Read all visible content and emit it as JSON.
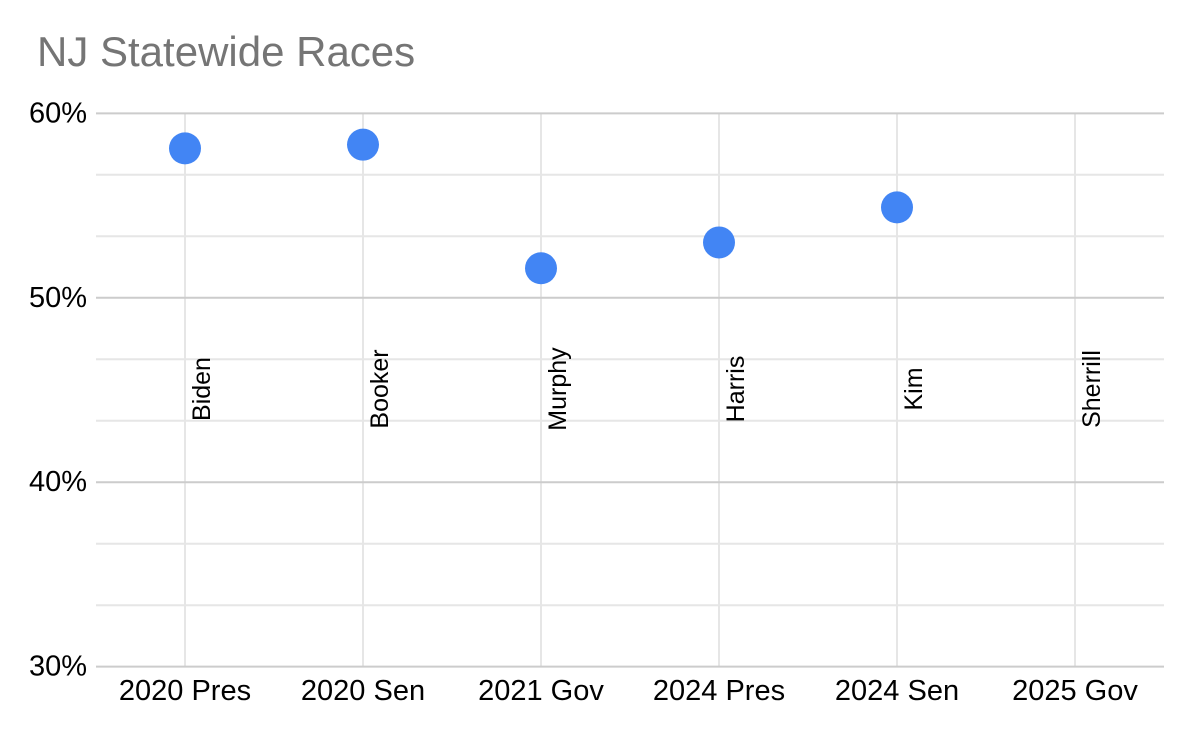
{
  "chart_data": {
    "type": "scatter",
    "title": "NJ Statewide Races",
    "title_color": "#757575",
    "point_color": "#4285f4",
    "text_color": "#000000",
    "grid_major_color": "#cccccc",
    "grid_minor_color": "#e6e6e6",
    "background_color": "#ffffff",
    "legend": "none",
    "grid": true,
    "categories": [
      "2020 Pres",
      "2020 Sen",
      "2021 Gov",
      "2024 Pres",
      "2024 Sen",
      "2025 Gov"
    ],
    "points": [
      {
        "category": "2020 Pres",
        "label": "Biden",
        "value": 58.1
      },
      {
        "category": "2020 Sen",
        "label": "Booker",
        "value": 58.3
      },
      {
        "category": "2021 Gov",
        "label": "Murphy",
        "value": 51.6
      },
      {
        "category": "2024 Pres",
        "label": "Harris",
        "value": 53.0
      },
      {
        "category": "2024 Sen",
        "label": "Kim",
        "value": 54.9
      },
      {
        "category": "2025 Gov",
        "label": "Sherrill",
        "value": null
      }
    ],
    "y_axis": {
      "min": 30,
      "max": 60,
      "minor_divisions": 3,
      "ticks": [
        {
          "value": 60,
          "label": "60%"
        },
        {
          "value": 50,
          "label": "50%"
        },
        {
          "value": 40,
          "label": "40%"
        },
        {
          "value": 30,
          "label": "30%"
        }
      ]
    }
  }
}
